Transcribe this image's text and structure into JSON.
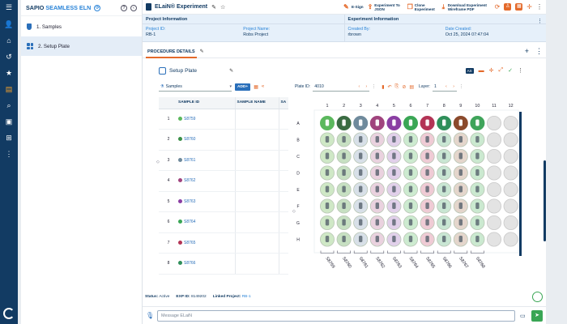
{
  "app": {
    "brand": "SAPIO",
    "brand_suffix": "SEAMLESS ELN"
  },
  "sidebar": {
    "items": [
      {
        "number": "1.",
        "label": "Samples",
        "icon": "beaker-icon"
      },
      {
        "number": "2.",
        "label": "Setup Plate",
        "icon": "grid-icon"
      }
    ]
  },
  "header": {
    "title": "ELaiN® Experiment",
    "actions": [
      {
        "label": "E-Sign",
        "icon": "pen-icon"
      },
      {
        "label": "Experiment To JSON",
        "icon": "export-icon"
      },
      {
        "label": "Clone Experiment",
        "icon": "clone-icon"
      },
      {
        "label": "Download Experiment Wireframe PDF",
        "icon": "download-icon"
      }
    ]
  },
  "project_info": {
    "section": "Project Information",
    "id_label": "Project ID:",
    "id_value": "RB-1",
    "name_label": "Project Name:",
    "name_value": "Robs Project"
  },
  "experiment_info": {
    "section": "Experiment Information",
    "created_by_label": "Created By:",
    "created_by_value": "rbrown",
    "date_label": "Date Created:",
    "date_value": "Oct 25, 2024 07:47:04"
  },
  "tabs": {
    "active": "PROCEDURE DETAILS"
  },
  "panel": {
    "title": "Setup Plate",
    "as_badge": "AS"
  },
  "samples_panel": {
    "select_value": "Samples",
    "add_button": "ADD+",
    "columns": [
      "SAMPLE ID",
      "SAMPLE NAME",
      "SA"
    ],
    "rows": [
      {
        "n": "1",
        "id": "S8759",
        "color": "#5bb85d"
      },
      {
        "n": "2",
        "id": "S8760",
        "color": "#3a8f47"
      },
      {
        "n": "3",
        "id": "S8761",
        "color": "#6f8a9c"
      },
      {
        "n": "4",
        "id": "S8762",
        "color": "#a0447e"
      },
      {
        "n": "5",
        "id": "S8763",
        "color": "#8a3ea3"
      },
      {
        "n": "6",
        "id": "S8764",
        "color": "#3aa655"
      },
      {
        "n": "7",
        "id": "S8765",
        "color": "#b33456"
      },
      {
        "n": "8",
        "id": "S8766",
        "color": "#2f8f5a"
      }
    ]
  },
  "plate": {
    "id_label": "Plate ID:",
    "id_value": "4010",
    "layer_label": "Layer:",
    "layer_value": "1",
    "columns": [
      "1",
      "2",
      "3",
      "4",
      "5",
      "6",
      "7",
      "8",
      "9",
      "10",
      "11",
      "12"
    ],
    "rows": [
      "A",
      "B",
      "C",
      "D",
      "E",
      "F",
      "G",
      "H"
    ],
    "column_colors": [
      "#5bb85d",
      "#3a6b42",
      "#6f8a9c",
      "#a0447e",
      "#8a3ea3",
      "#3aa655",
      "#b33456",
      "#2f8f5a",
      "#8b4a2c",
      "#3fa45a",
      "",
      ""
    ],
    "light_colors": [
      "#cfe8c6",
      "#c7e0c2",
      "#d8e0e8",
      "#ead2df",
      "#e1d0ea",
      "#cdebd0",
      "#efcbd5",
      "#c9e6d3",
      "#e4d6cc",
      "#cbe9d0",
      "#e3e3e3",
      "#e3e3e3"
    ],
    "bottom_labels": [
      "S8759",
      "S8760",
      "S8761",
      "S8762",
      "S8763",
      "S8764",
      "S8765",
      "S8766",
      "S8767",
      "S8768"
    ]
  },
  "status": {
    "status_label": "Status:",
    "status_value": "Active",
    "exp_label": "EXP ID:",
    "exp_value": "8149202",
    "linked_label": "Linked Project:",
    "linked_value": "RB-1"
  },
  "chat": {
    "placeholder": "Message ELaiN"
  }
}
